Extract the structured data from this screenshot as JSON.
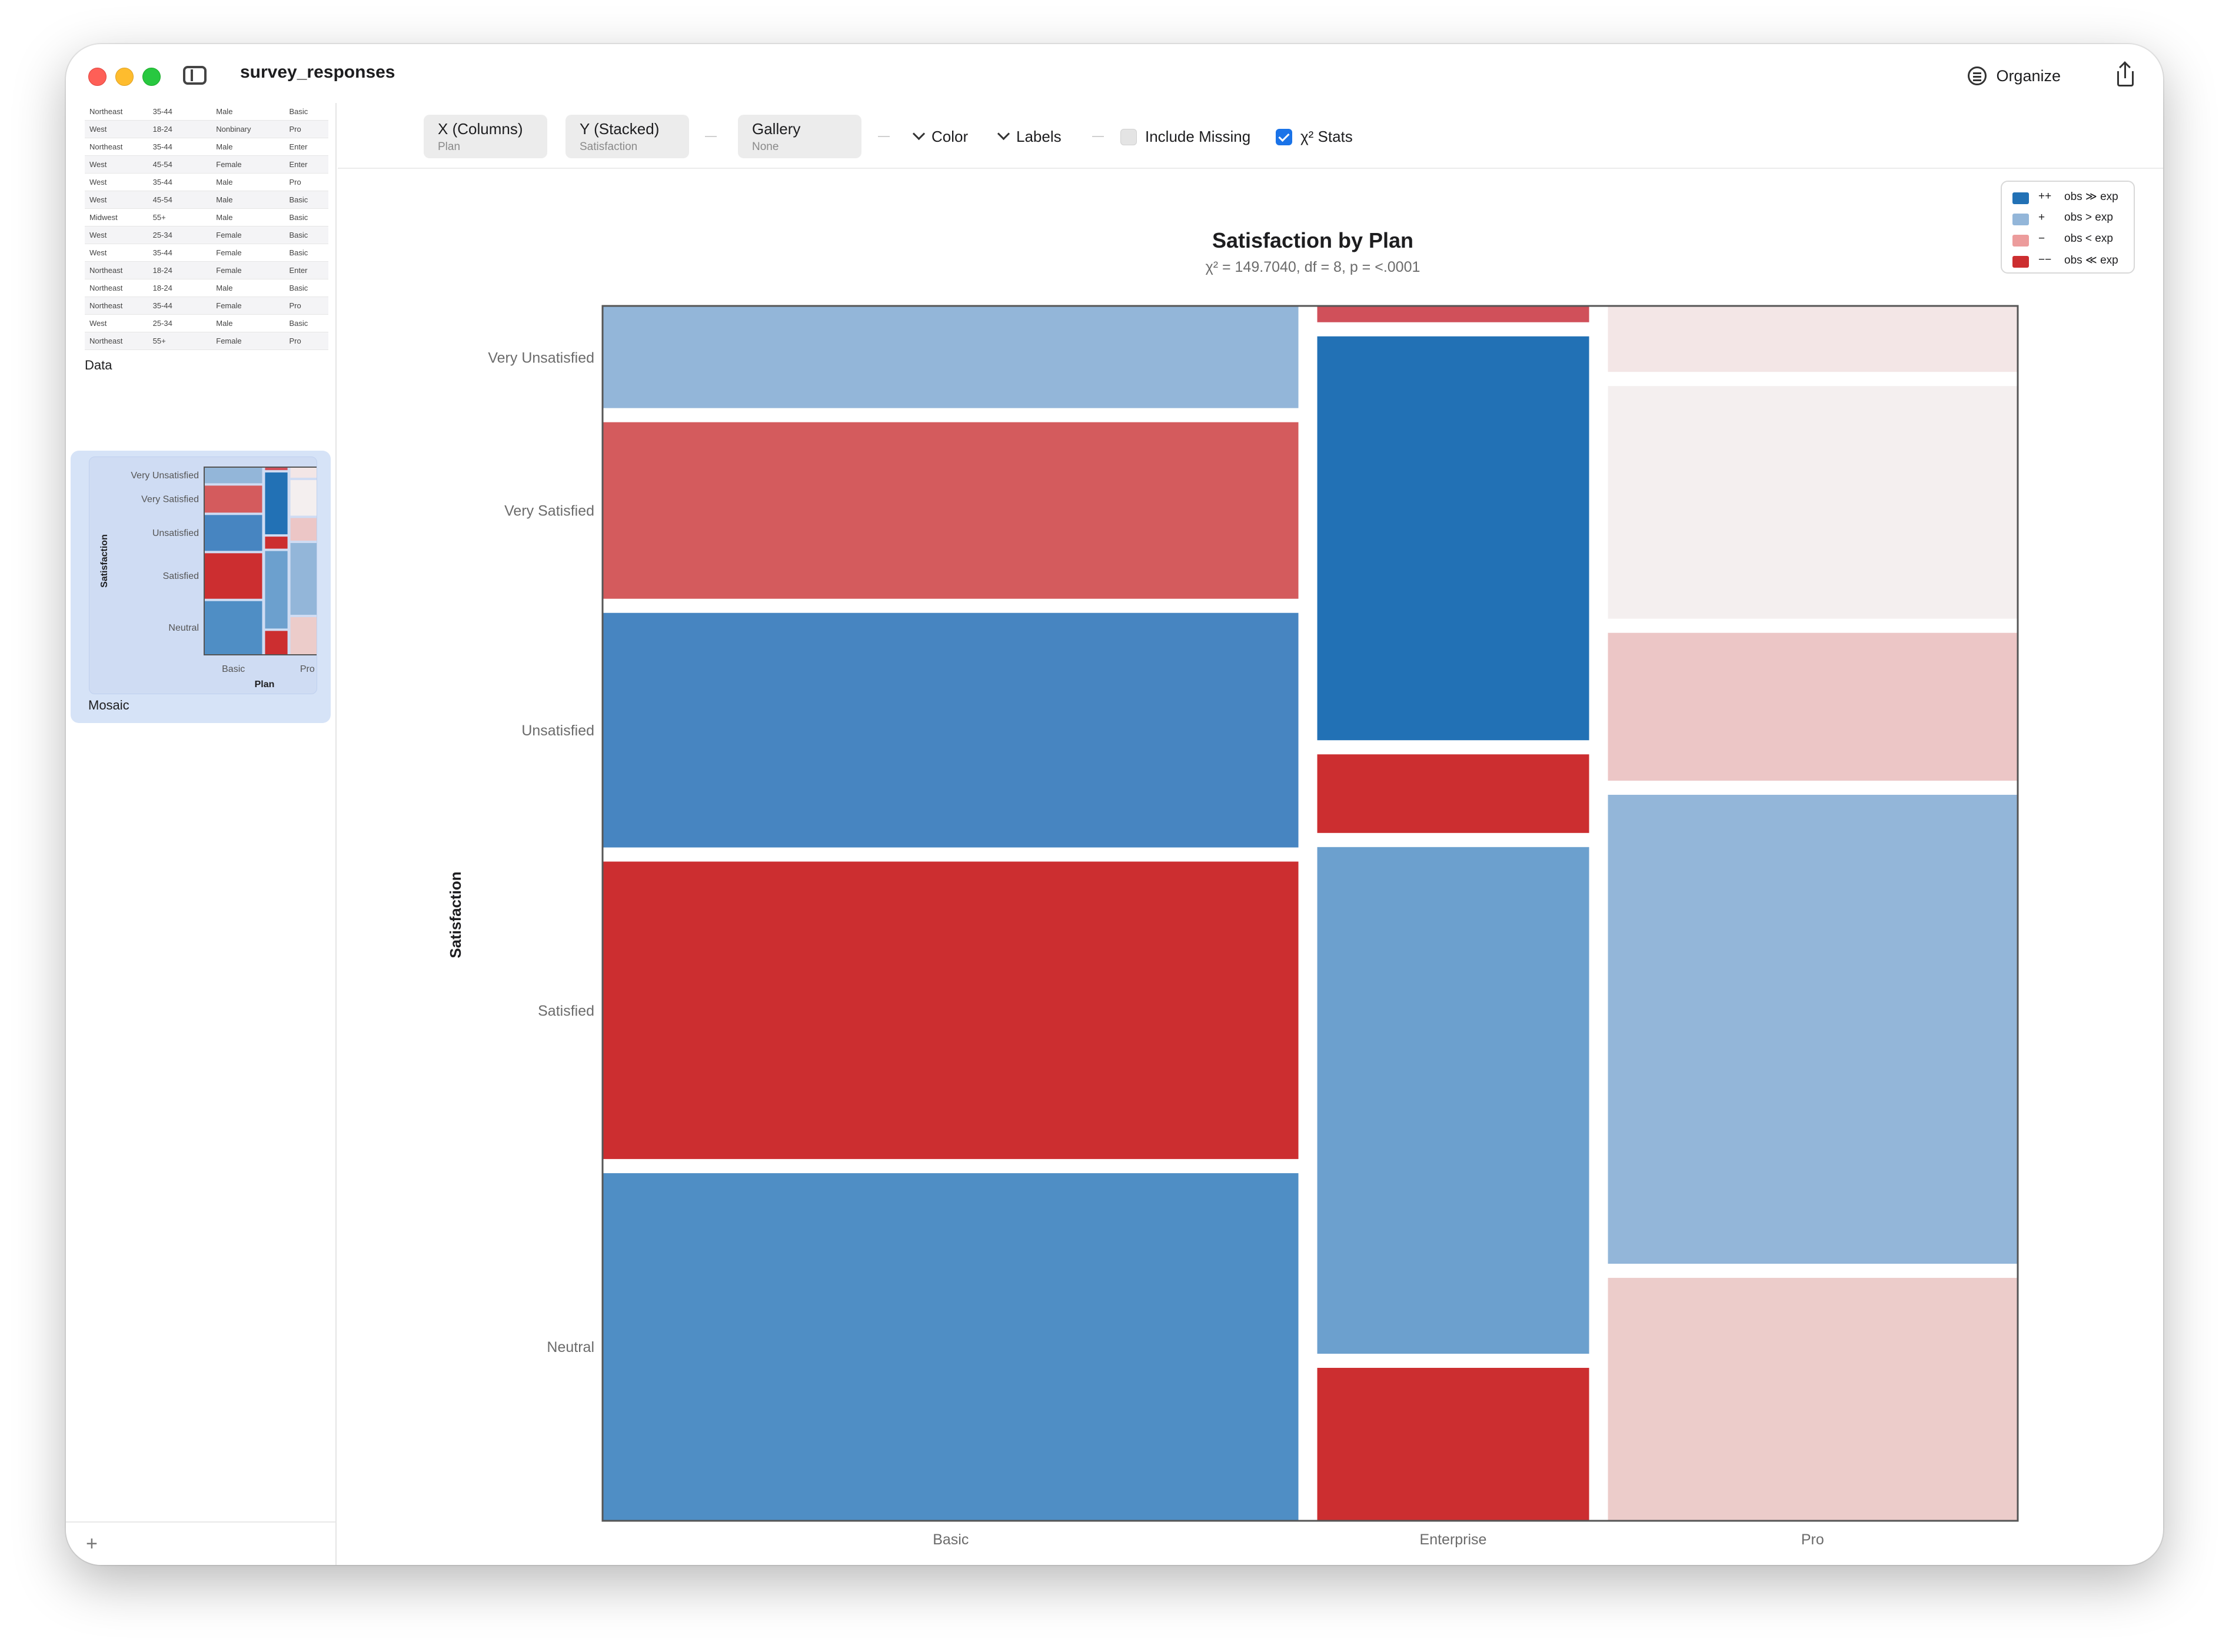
{
  "window": {
    "title": "survey_responses"
  },
  "titlebar": {
    "organize_label": "Organize"
  },
  "sidebar": {
    "data_rows": [
      [
        "Northeast",
        "35-44",
        "Male",
        "Basic"
      ],
      [
        "West",
        "18-24",
        "Nonbinary",
        "Pro"
      ],
      [
        "Northeast",
        "35-44",
        "Male",
        "Enter"
      ],
      [
        "West",
        "45-54",
        "Female",
        "Enter"
      ],
      [
        "West",
        "35-44",
        "Male",
        "Pro"
      ],
      [
        "West",
        "45-54",
        "Male",
        "Basic"
      ],
      [
        "Midwest",
        "55+",
        "Male",
        "Basic"
      ],
      [
        "West",
        "25-34",
        "Female",
        "Basic"
      ],
      [
        "West",
        "35-44",
        "Female",
        "Basic"
      ],
      [
        "Northeast",
        "18-24",
        "Female",
        "Enter"
      ],
      [
        "Northeast",
        "18-24",
        "Male",
        "Basic"
      ],
      [
        "Northeast",
        "35-44",
        "Female",
        "Pro"
      ],
      [
        "West",
        "25-34",
        "Male",
        "Basic"
      ],
      [
        "Northeast",
        "55+",
        "Female",
        "Pro"
      ],
      [
        "West",
        "18-24",
        "Male",
        "Basic"
      ]
    ],
    "data_label": "Data",
    "mosaic_label": "Mosaic",
    "add_label": "+"
  },
  "toolbar": {
    "x_label": "X (Columns)",
    "x_value": "Plan",
    "y_label": "Y (Stacked)",
    "y_value": "Satisfaction",
    "gallery_label": "Gallery",
    "gallery_value": "None",
    "color_label": "Color",
    "labels_label": "Labels",
    "include_missing_label": "Include Missing",
    "include_missing_checked": false,
    "chi_stats_label": "χ² Stats",
    "chi_stats_checked": true
  },
  "legend": [
    {
      "symbol": "++",
      "text": "obs ≫ exp",
      "color": "#2271b5"
    },
    {
      "symbol": "+",
      "text": "obs > exp",
      "color": "#93b6d9"
    },
    {
      "symbol": "−",
      "text": "obs < exp",
      "color": "#ec9c9c"
    },
    {
      "symbol": "−−",
      "text": "obs ≪ exp",
      "color": "#cc2e30"
    }
  ],
  "chart_data": {
    "type": "mosaic",
    "title": "Satisfaction by Plan",
    "subtitle": "χ² = 149.7040,  df = 8,  p = <.0001",
    "xlabel": "Plan",
    "ylabel": "Satisfaction",
    "categories": [
      "Basic",
      "Enterprise",
      "Pro"
    ],
    "column_shares": [
      0.491,
      0.192,
      0.289
    ],
    "rows": [
      "Very Unsatisfied",
      "Very Satisfied",
      "Unsatisfied",
      "Satisfied",
      "Neutral"
    ],
    "cells": {
      "Basic": [
        {
          "share": 0.084,
          "color": "#93b6d9"
        },
        {
          "share": 0.146,
          "color": "#d45b5d"
        },
        {
          "share": 0.194,
          "color": "#4785c1"
        },
        {
          "share": 0.246,
          "color": "#cc2e30"
        },
        {
          "share": 0.287,
          "color": "#4f8ec5"
        }
      ],
      "Enterprise": [
        {
          "share": 0.013,
          "color": "#d0505a"
        },
        {
          "share": 0.334,
          "color": "#2271b5"
        },
        {
          "share": 0.065,
          "color": "#cc2e30"
        },
        {
          "share": 0.419,
          "color": "#6ca0ce"
        },
        {
          "share": 0.126,
          "color": "#cc2e30"
        }
      ],
      "Pro": [
        {
          "share": 0.054,
          "color": "#f3e6e6"
        },
        {
          "share": 0.192,
          "color": "#f4efef"
        },
        {
          "share": 0.122,
          "color": "#ecc6c6"
        },
        {
          "share": 0.387,
          "color": "#93b6d9"
        },
        {
          "share": 0.2,
          "color": "#ecccca"
        }
      ]
    },
    "thumbnail_rows": [
      "Very Unsatisfied",
      "Very Satisfied",
      "Unsatisfied",
      "Satisfied",
      "Neutral"
    ],
    "thumbnail_xticks": [
      "Basic",
      "Pro"
    ]
  }
}
